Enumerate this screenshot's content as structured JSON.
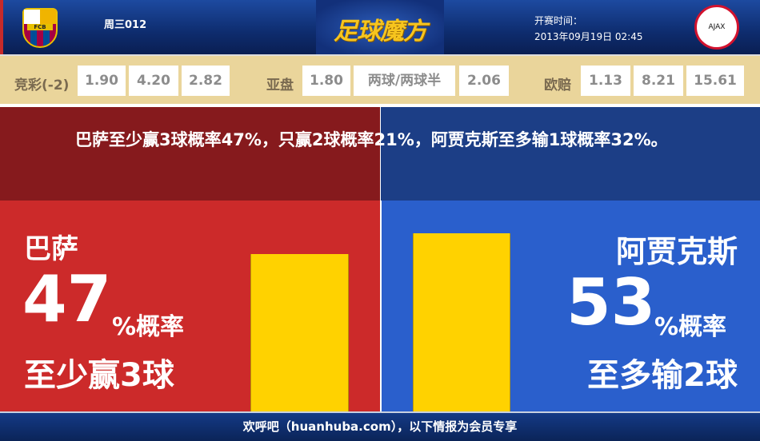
{
  "header": {
    "match_no": "周三012",
    "logo_text": "足球魔方",
    "time_label": "开赛时间：",
    "time_value": "2013年09月19日 02:45",
    "home_crest": "FCB",
    "away_crest": "AJAX"
  },
  "odds": {
    "jingcai": {
      "label": "竞彩(-2)",
      "values": [
        "1.90",
        "4.20",
        "2.82"
      ]
    },
    "asian": {
      "label": "亚盘",
      "values": [
        "1.80",
        "两球/两球半",
        "2.06"
      ]
    },
    "euro": {
      "label": "欧赔",
      "values": [
        "1.13",
        "8.21",
        "15.61"
      ]
    }
  },
  "headline": "巴萨至少赢3球概率47%，只赢2球概率21%，阿贾克斯至多输1球概率32%。",
  "home": {
    "name": "巴萨",
    "percent": "47",
    "unit": "%概率",
    "desc": "至少赢3球",
    "value": 47,
    "color": "#cc2a2a"
  },
  "away": {
    "name": "阿贾克斯",
    "percent": "53",
    "unit": "%概率",
    "desc": "至多输2球",
    "value": 53,
    "color": "#2a5fcc"
  },
  "bar_color": "#ffd200",
  "footer": "欢呼吧（huanhuba.com），以下情报为会员专享"
}
